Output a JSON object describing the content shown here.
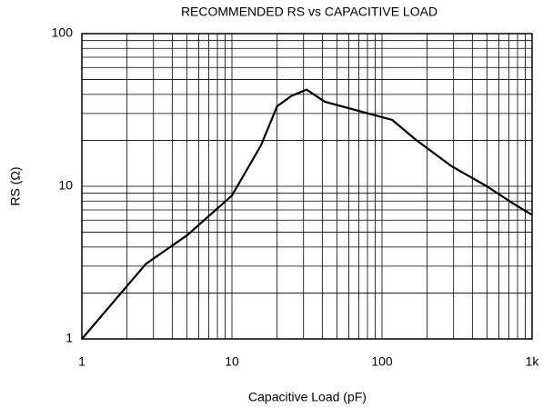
{
  "chart_data": {
    "type": "line",
    "title": "RECOMMENDED RS vs CAPACITIVE LOAD",
    "xlabel": "Capacitive Load (pF)",
    "ylabel": "RS (Ω)",
    "x": [
      1,
      2.67,
      5.06,
      10,
      15.6,
      20,
      24.8,
      31.4,
      41.5,
      117,
      171,
      292,
      499,
      766,
      1000
    ],
    "values": [
      1,
      3.1,
      4.8,
      8.7,
      18.5,
      33.4,
      39,
      43,
      35.8,
      27.2,
      19.9,
      13.5,
      10,
      7.6,
      6.5
    ],
    "color": "#000000",
    "xlim": [
      1,
      1000
    ],
    "ylim": [
      1,
      100
    ],
    "xticks": [
      1,
      10,
      100,
      {
        "value": 1000,
        "label": "1k"
      }
    ],
    "yticks": [
      1,
      10,
      100
    ],
    "xscale": "log",
    "yscale": "log",
    "grid": true
  }
}
